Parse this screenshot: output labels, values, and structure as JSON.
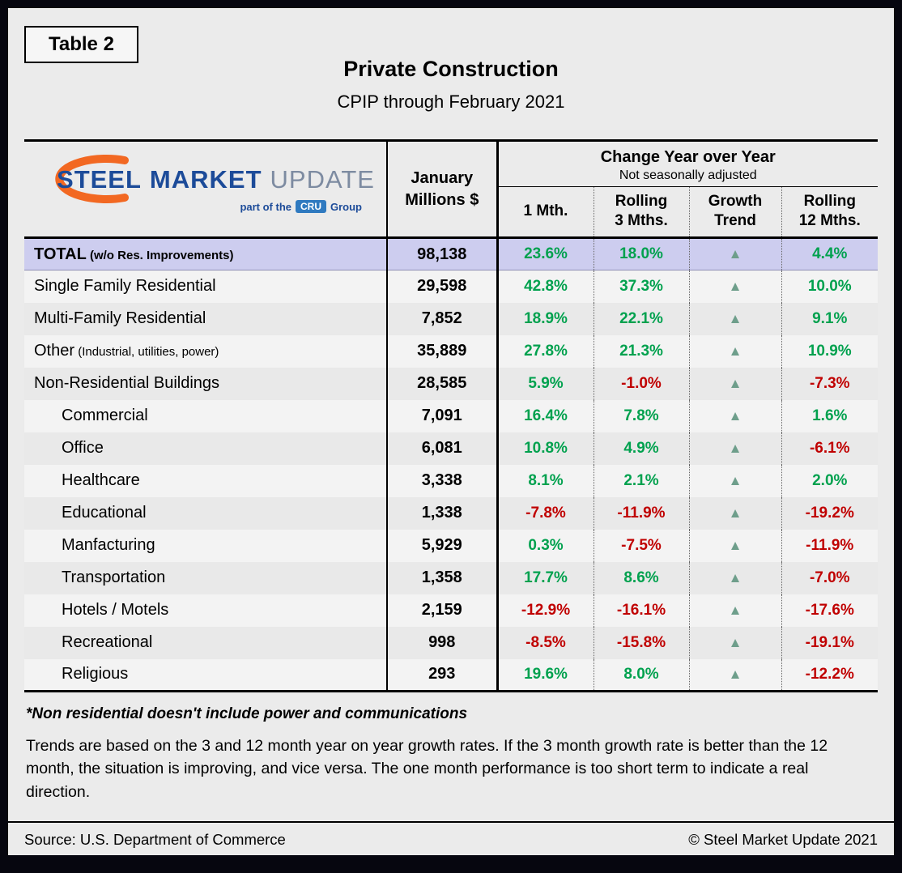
{
  "header": {
    "table_label": "Table 2",
    "title": "Private Construction",
    "subtitle": "CPIP through February 2021"
  },
  "logo": {
    "word1": "STEEL",
    "word2": "MARKET",
    "word3": "UPDATE",
    "tagline_prefix": "part of the",
    "cru_badge": "CRU",
    "tagline_suffix": "Group"
  },
  "table_header": {
    "january": "January\nMillions $",
    "group_title": "Change Year over Year",
    "group_subtitle": "Not seasonally adjusted",
    "columns": [
      "1 Mth.",
      "Rolling\n3 Mths.",
      "Growth\nTrend",
      "Rolling\n12 Mths."
    ]
  },
  "chart_data": {
    "type": "table",
    "title": "Private Construction",
    "subtitle": "CPIP through February 2021",
    "columns": [
      "January Millions $",
      "1 Mth.",
      "Rolling 3 Mths.",
      "Growth Trend",
      "Rolling 12 Mths."
    ],
    "rows": [
      {
        "name": "TOTAL",
        "suffix": "(w/o Res. Improvements)",
        "january": 98138,
        "m1": 23.6,
        "m3": 18.0,
        "trend": "up",
        "m12": 4.4,
        "highlight": true
      },
      {
        "name": "Single Family Residential",
        "january": 29598,
        "m1": 42.8,
        "m3": 37.3,
        "trend": "up",
        "m12": 10.0
      },
      {
        "name": "Multi-Family Residential",
        "january": 7852,
        "m1": 18.9,
        "m3": 22.1,
        "trend": "up",
        "m12": 9.1
      },
      {
        "name": "Other",
        "suffix": "(Industrial, utilities, power)",
        "january": 35889,
        "m1": 27.8,
        "m3": 21.3,
        "trend": "up",
        "m12": 10.9
      },
      {
        "name": "Non-Residential Buildings",
        "january": 28585,
        "m1": 5.9,
        "m3": -1.0,
        "trend": "up",
        "m12": -7.3
      },
      {
        "name": "Commercial",
        "january": 7091,
        "m1": 16.4,
        "m3": 7.8,
        "trend": "up",
        "m12": 1.6,
        "indent": true
      },
      {
        "name": "Office",
        "january": 6081,
        "m1": 10.8,
        "m3": 4.9,
        "trend": "up",
        "m12": -6.1,
        "indent": true
      },
      {
        "name": "Healthcare",
        "january": 3338,
        "m1": 8.1,
        "m3": 2.1,
        "trend": "up",
        "m12": 2.0,
        "indent": true
      },
      {
        "name": "Educational",
        "january": 1338,
        "m1": -7.8,
        "m3": -11.9,
        "trend": "up",
        "m12": -19.2,
        "indent": true
      },
      {
        "name": "Manfacturing",
        "january": 5929,
        "m1": 0.3,
        "m3": -7.5,
        "trend": "up",
        "m12": -11.9,
        "indent": true
      },
      {
        "name": "Transportation",
        "january": 1358,
        "m1": 17.7,
        "m3": 8.6,
        "trend": "up",
        "m12": -7.0,
        "indent": true
      },
      {
        "name": "Hotels / Motels",
        "january": 2159,
        "m1": -12.9,
        "m3": -16.1,
        "trend": "up",
        "m12": -17.6,
        "indent": true
      },
      {
        "name": "Recreational",
        "january": 998,
        "m1": -8.5,
        "m3": -15.8,
        "trend": "up",
        "m12": -19.1,
        "indent": true
      },
      {
        "name": "Religious",
        "january": 293,
        "m1": 19.6,
        "m3": 8.0,
        "trend": "up",
        "m12": -12.2,
        "indent": true
      }
    ]
  },
  "icons": {
    "trend_up": "▲"
  },
  "notes": {
    "footnote": "*Non residential doesn't include power and communications",
    "trend_explanation": "Trends are based on the 3 and 12 month year on year growth rates. If the 3 month growth rate is better than the 12 month, the situation is improving, and vice versa. The one month performance is too short term to indicate a real direction."
  },
  "footer": {
    "source": "Source: U.S. Department of Commerce",
    "copyright": "© Steel Market Update 2021"
  },
  "colors": {
    "positive": "#00a14e",
    "negative": "#c00000",
    "trend_arrow": "#6e9e8b",
    "total_row_bg": "#cdcdef",
    "logo_blue": "#1c4b99",
    "logo_orange": "#f26822"
  }
}
